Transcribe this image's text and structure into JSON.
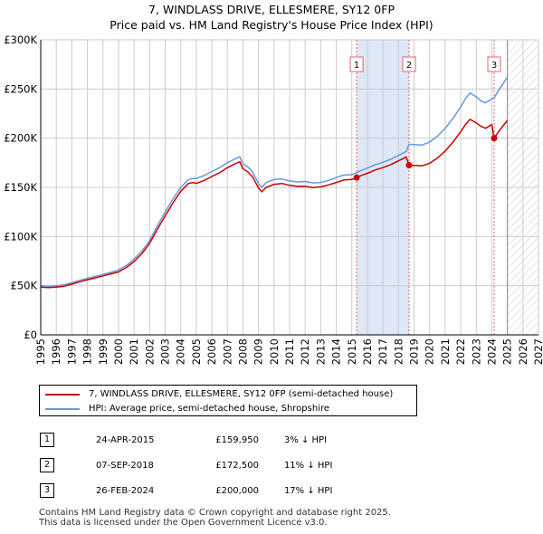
{
  "title_line1": "7, WINDLASS DRIVE, ELLESMERE, SY12 0FP",
  "title_line2": "Price paid vs. HM Land Registry's House Price Index (HPI)",
  "colors": {
    "property": "#cc0000",
    "hpi": "#6699dd",
    "shade": "#dde7f5",
    "grid": "#cccccc",
    "marker": "#e06666"
  },
  "legend": {
    "property_label": "7, WINDLASS DRIVE, ELLESMERE, SY12 0FP (semi-detached house)",
    "hpi_label": "HPI: Average price, semi-detached house, Shropshire"
  },
  "sales": [
    {
      "num": "1",
      "date": "24-APR-2015",
      "price": "£159,950",
      "hpi_diff": "3% ↓ HPI"
    },
    {
      "num": "2",
      "date": "07-SEP-2018",
      "price": "£172,500",
      "hpi_diff": "11% ↓ HPI"
    },
    {
      "num": "3",
      "date": "26-FEB-2024",
      "price": "£200,000",
      "hpi_diff": "17% ↓ HPI"
    }
  ],
  "footer_line1": "Contains HM Land Registry data © Crown copyright and database right 2025.",
  "footer_line2": "This data is licensed under the Open Government Licence v3.0.",
  "chart_data": {
    "type": "line",
    "title": "7, WINDLASS DRIVE, ELLESMERE, SY12 0FP — Price paid vs. HM Land Registry's House Price Index (HPI)",
    "xlabel": "",
    "ylabel": "",
    "xlim": [
      1995,
      2027
    ],
    "ylim": [
      0,
      300000
    ],
    "x_ticks": [
      "1995",
      "1996",
      "1997",
      "1998",
      "1999",
      "2000",
      "2001",
      "2002",
      "2003",
      "2004",
      "2005",
      "2006",
      "2007",
      "2008",
      "2009",
      "2010",
      "2011",
      "2012",
      "2013",
      "2014",
      "2015",
      "2016",
      "2017",
      "2018",
      "2019",
      "2020",
      "2021",
      "2022",
      "2023",
      "2024",
      "2025",
      "2026",
      "2027"
    ],
    "y_ticks": [
      {
        "value": 0,
        "label": "£0"
      },
      {
        "value": 50000,
        "label": "£50K"
      },
      {
        "value": 100000,
        "label": "£100K"
      },
      {
        "value": 150000,
        "label": "£150K"
      },
      {
        "value": 200000,
        "label": "£200K"
      },
      {
        "value": 250000,
        "label": "£250K"
      },
      {
        "value": 300000,
        "label": "£300K"
      }
    ],
    "shaded_span": [
      2015.31,
      2018.68
    ],
    "forecast_from": 2025.0,
    "sale_markers": [
      {
        "label": "1",
        "x": 2015.31,
        "y": 159950
      },
      {
        "label": "2",
        "x": 2018.68,
        "y": 172500
      },
      {
        "label": "3",
        "x": 2024.15,
        "y": 200000
      }
    ],
    "series": [
      {
        "name": "HPI: Average price, semi-detached house, Shropshire",
        "x": [
          1995.0,
          1995.5,
          1996.0,
          1996.5,
          1997.0,
          1997.5,
          1998.0,
          1998.5,
          1999.0,
          1999.5,
          2000.0,
          2000.5,
          2001.0,
          2001.5,
          2002.0,
          2002.5,
          2003.0,
          2003.5,
          2004.0,
          2004.5,
          2004.8,
          2005.0,
          2005.5,
          2006.0,
          2006.5,
          2007.0,
          2007.5,
          2007.8,
          2008.0,
          2008.3,
          2008.6,
          2009.0,
          2009.2,
          2009.5,
          2010.0,
          2010.5,
          2011.0,
          2011.5,
          2012.0,
          2012.5,
          2013.0,
          2013.5,
          2014.0,
          2014.5,
          2015.0,
          2015.31,
          2015.5,
          2016.0,
          2016.5,
          2017.0,
          2017.5,
          2018.0,
          2018.5,
          2018.68,
          2019.0,
          2019.5,
          2020.0,
          2020.5,
          2021.0,
          2021.5,
          2022.0,
          2022.3,
          2022.6,
          2023.0,
          2023.3,
          2023.6,
          2024.0,
          2024.15,
          2024.5,
          2025.0
        ],
        "values": [
          50000,
          49500,
          50000,
          51000,
          53000,
          55500,
          57500,
          59500,
          61500,
          63500,
          66000,
          70500,
          77000,
          85000,
          96000,
          111000,
          125000,
          138000,
          150000,
          158000,
          159000,
          159000,
          162000,
          166000,
          170000,
          175000,
          179000,
          181000,
          174000,
          171000,
          166000,
          154000,
          150000,
          155000,
          158000,
          158500,
          156500,
          155500,
          156000,
          154500,
          155000,
          157000,
          160000,
          162500,
          163000,
          164900,
          166500,
          169500,
          173000,
          175500,
          178500,
          182500,
          186500,
          193800,
          193500,
          193000,
          196000,
          202000,
          210000,
          220000,
          232000,
          240000,
          246000,
          242000,
          238000,
          236000,
          240000,
          241000,
          250000,
          262000
        ]
      },
      {
        "name": "7, WINDLASS DRIVE, ELLESMERE, SY12 0FP (semi-detached house)",
        "x": [
          1995.0,
          1995.5,
          1996.0,
          1996.5,
          1997.0,
          1997.5,
          1998.0,
          1998.5,
          1999.0,
          1999.5,
          2000.0,
          2000.5,
          2001.0,
          2001.5,
          2002.0,
          2002.5,
          2003.0,
          2003.5,
          2004.0,
          2004.5,
          2004.8,
          2005.0,
          2005.5,
          2006.0,
          2006.5,
          2007.0,
          2007.5,
          2007.8,
          2008.0,
          2008.3,
          2008.6,
          2009.0,
          2009.2,
          2009.5,
          2010.0,
          2010.5,
          2011.0,
          2011.5,
          2012.0,
          2012.5,
          2013.0,
          2013.5,
          2014.0,
          2014.5,
          2015.0,
          2015.31,
          2015.5,
          2016.0,
          2016.5,
          2017.0,
          2017.5,
          2018.0,
          2018.5,
          2018.68,
          2019.0,
          2019.5,
          2020.0,
          2020.5,
          2021.0,
          2021.5,
          2022.0,
          2022.3,
          2022.6,
          2023.0,
          2023.3,
          2023.6,
          2024.0,
          2024.15,
          2024.5,
          2025.0
        ],
        "values": [
          48500,
          48000,
          48500,
          49500,
          51500,
          54000,
          56000,
          58000,
          60000,
          62000,
          64000,
          68500,
          74500,
          82500,
          93000,
          107500,
          121000,
          134000,
          146000,
          154000,
          155000,
          154000,
          157000,
          161000,
          165000,
          170000,
          174000,
          176000,
          169000,
          166000,
          161000,
          149500,
          145500,
          150000,
          153000,
          154000,
          152000,
          151000,
          151000,
          149800,
          150500,
          152500,
          155000,
          157500,
          158000,
          159950,
          161400,
          164300,
          167700,
          170100,
          173100,
          177000,
          180900,
          172500,
          172300,
          171800,
          174500,
          179800,
          186900,
          195900,
          206600,
          213700,
          219100,
          215500,
          212000,
          210100,
          213900,
          200000,
          208000,
          218000
        ]
      }
    ]
  }
}
